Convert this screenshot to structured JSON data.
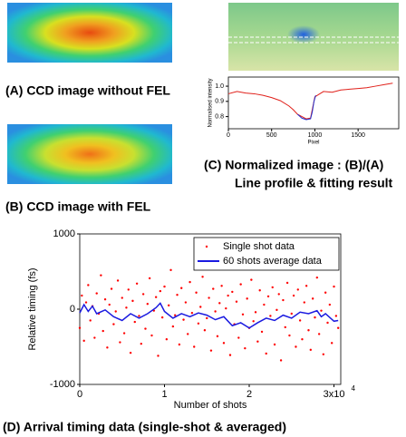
{
  "panels": {
    "a": {
      "caption": "(A) CCD image without FEL"
    },
    "b": {
      "caption": "(B) CCD image with FEL"
    },
    "c": {
      "caption": "(C) Normalized image : (B)/(A)",
      "caption2": "Line profile & fitting result"
    },
    "d": {
      "caption": "(D) Arrival timing data (single-shot & averaged)"
    }
  },
  "chart_data": [
    {
      "type": "line",
      "xlabel": "Pixel",
      "ylabel": "Normalised intensity",
      "xlim": [
        0,
        1970
      ],
      "xticks": [
        0,
        500,
        1000,
        1500
      ],
      "ylim": [
        0.72,
        1.06
      ],
      "yticks": [
        0.8,
        0.9,
        {
          "value": 1,
          "label": "1.0"
        }
      ],
      "series": [
        {
          "color": "#e0201a",
          "x": [
            0,
            100,
            200,
            300,
            400,
            500,
            600,
            700,
            750,
            800,
            850,
            900,
            950,
            1000,
            1100,
            1200,
            1300,
            1400,
            1500,
            1600,
            1700,
            1800,
            1900
          ],
          "values": [
            0.95,
            0.965,
            0.955,
            0.95,
            0.94,
            0.925,
            0.905,
            0.87,
            0.845,
            0.815,
            0.8,
            0.785,
            0.79,
            0.93,
            0.965,
            0.96,
            0.975,
            0.98,
            0.985,
            0.99,
            1.0,
            1.01,
            1.02
          ]
        },
        {
          "color": "#2030d0",
          "x": [
            800,
            850,
            900,
            950,
            970,
            990,
            1010
          ],
          "values": [
            0.815,
            0.79,
            0.78,
            0.785,
            0.83,
            0.9,
            0.94
          ]
        }
      ]
    },
    {
      "type": "scatter-line",
      "xlabel": "Number of shots",
      "ylabel": "Relative timing (fs)",
      "xlim": [
        0,
        30800
      ],
      "xticks": [
        {
          "value": 0,
          "label": "0"
        },
        {
          "value": 10000,
          "label": "1"
        },
        {
          "value": 20000,
          "label": "2"
        },
        {
          "value": 30000,
          "label": "3x10"
        }
      ],
      "xtick_exponent": "4",
      "ylim": [
        -1000,
        1000
      ],
      "yticks": [
        -1000,
        0,
        1000
      ],
      "legend": "top-right",
      "series": [
        {
          "name": "Single shot data",
          "color": "#ff0000",
          "mode": "markers",
          "x": [
            0,
            250,
            500,
            750,
            1000,
            1250,
            1500,
            1750,
            2000,
            2250,
            2500,
            2750,
            3000,
            3250,
            3500,
            3750,
            4000,
            4250,
            4500,
            4750,
            5000,
            5250,
            5500,
            5750,
            6000,
            6250,
            6500,
            6750,
            7000,
            7250,
            7500,
            7750,
            8000,
            8250,
            8500,
            8750,
            9000,
            9250,
            9500,
            9750,
            10000,
            10250,
            10500,
            10750,
            11000,
            11250,
            11500,
            11750,
            12000,
            12250,
            12500,
            12750,
            13000,
            13250,
            13500,
            13750,
            14000,
            14250,
            14500,
            14750,
            15000,
            15250,
            15500,
            15750,
            16000,
            16250,
            16500,
            16750,
            17000,
            17250,
            17500,
            17750,
            18000,
            18250,
            18500,
            18750,
            19000,
            19250,
            19500,
            19750,
            20000,
            20250,
            20500,
            20750,
            21000,
            21250,
            21500,
            21750,
            22000,
            22250,
            22500,
            22750,
            23000,
            23250,
            23500,
            23750,
            24000,
            24250,
            24500,
            24750,
            25000,
            25250,
            25500,
            25750,
            26000,
            26250,
            26500,
            26750,
            27000,
            27250,
            27500,
            27750,
            28000,
            28250,
            28500,
            28750,
            29000,
            29250,
            29500,
            29750,
            30000,
            30250,
            30500
          ],
          "values": [
            -250,
            180,
            -420,
            90,
            320,
            -150,
            40,
            -380,
            210,
            -60,
            450,
            -290,
            130,
            -510,
            60,
            270,
            -200,
            -30,
            380,
            -440,
            150,
            -320,
            20,
            260,
            -580,
            110,
            -170,
            340,
            -90,
            -460,
            200,
            -260,
            70,
            410,
            -350,
            -20,
            160,
            -620,
            240,
            -110,
            300,
            -400,
            50,
            520,
            -230,
            -80,
            190,
            -470,
            280,
            -140,
            90,
            -330,
            360,
            -50,
            -500,
            220,
            -190,
            30,
            430,
            -280,
            -120,
            150,
            -550,
            270,
            -30,
            -360,
            80,
            310,
            -450,
            10,
            180,
            -610,
            230,
            -200,
            100,
            -380,
            330,
            -70,
            -520,
            140,
            -250,
            390,
            -160,
            -40,
            -430,
            250,
            -300,
            60,
            -590,
            170,
            -90,
            290,
            -470,
            -10,
            200,
            -680,
            120,
            -240,
            350,
            -350,
            -60,
            180,
            -500,
            260,
            -150,
            -400,
            90,
            310,
            -280,
            -540,
            140,
            -110,
            420,
            -330,
            -20,
            -600,
            220,
            -180,
            60,
            -450,
            300,
            -90,
            -250
          ]
        },
        {
          "name": "60 shots average data",
          "color": "#1a1ae0",
          "mode": "line",
          "x": [
            0,
            500,
            1000,
            1500,
            2000,
            3000,
            4000,
            5000,
            6000,
            7000,
            8000,
            9000,
            9500,
            10000,
            11000,
            12000,
            13000,
            14000,
            15000,
            16000,
            17000,
            18000,
            19000,
            20000,
            21000,
            22000,
            23000,
            24000,
            25000,
            26000,
            27000,
            28000,
            28500,
            29000,
            30000,
            30500
          ],
          "values": [
            -50,
            60,
            -30,
            40,
            -60,
            -10,
            -100,
            -150,
            -60,
            -120,
            -60,
            20,
            80,
            -30,
            -120,
            -60,
            -100,
            -50,
            -80,
            -140,
            -100,
            -220,
            -180,
            -250,
            -180,
            -120,
            -150,
            -80,
            -120,
            -40,
            -60,
            -20,
            -100,
            -60,
            -160,
            -150
          ]
        }
      ]
    }
  ]
}
